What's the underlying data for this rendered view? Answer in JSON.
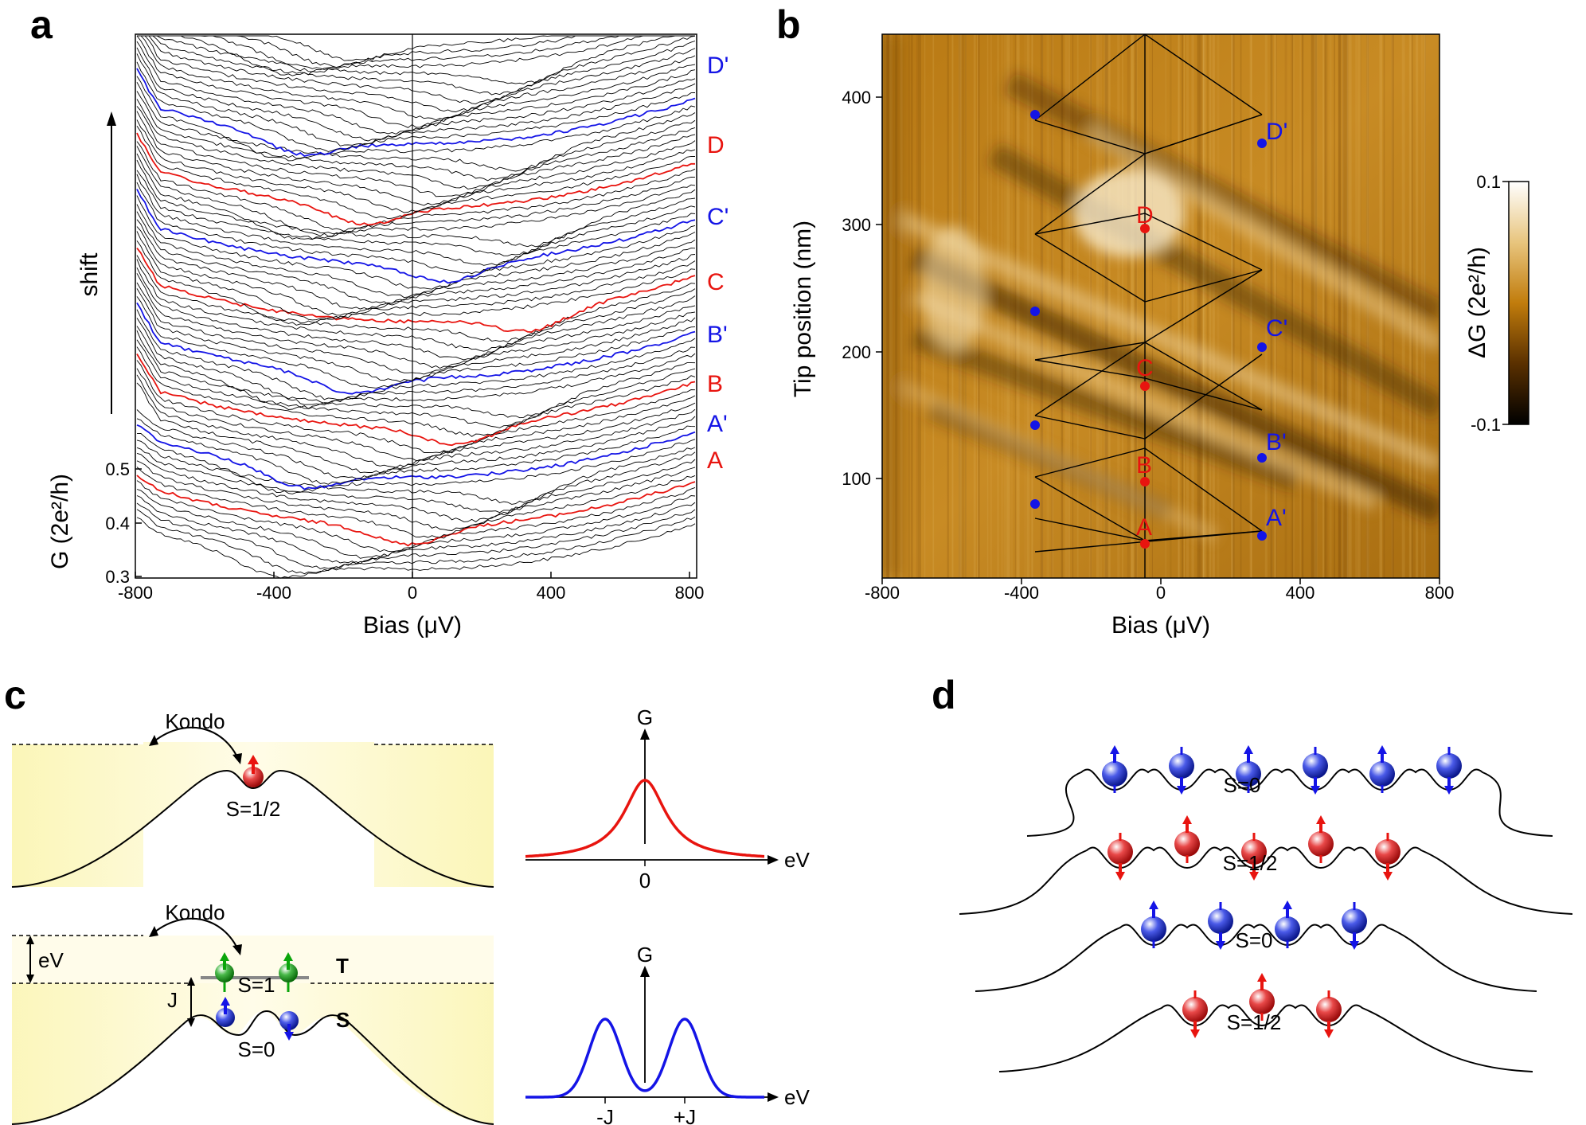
{
  "panels": {
    "a": "a",
    "b": "b",
    "c": "c",
    "d": "d"
  },
  "colors": {
    "red": "#e8140f",
    "blue": "#1414e6",
    "green": "#0aa50a",
    "black": "#000000"
  },
  "panel_a": {
    "shift_label": "shift",
    "xlabel": "Bias (μV)",
    "ylabel": "G (2e²/h)",
    "xticks": [
      "-800",
      "-400",
      "0",
      "400",
      "800"
    ],
    "yticks": [
      "0.3",
      "0.4",
      "0.5"
    ],
    "curve_labels": [
      {
        "text": "D'",
        "color": "blue"
      },
      {
        "text": "D",
        "color": "red"
      },
      {
        "text": "C'",
        "color": "blue"
      },
      {
        "text": "C",
        "color": "red"
      },
      {
        "text": "B'",
        "color": "blue"
      },
      {
        "text": "B",
        "color": "red"
      },
      {
        "text": "A'",
        "color": "blue"
      },
      {
        "text": "A",
        "color": "red"
      }
    ]
  },
  "panel_b": {
    "xlabel": "Bias (μV)",
    "ylabel": "Tip position (nm)",
    "xticks": [
      "-800",
      "-400",
      "0",
      "400",
      "800"
    ],
    "yticks": [
      "100",
      "200",
      "300",
      "400"
    ],
    "colorbar_label": "ΔG (2e²/h)",
    "colorbar_max": "0.1",
    "colorbar_min": "-0.1",
    "point_labels": [
      {
        "text": "D'",
        "color": "blue"
      },
      {
        "text": "D",
        "color": "red"
      },
      {
        "text": "C'",
        "color": "blue"
      },
      {
        "text": "C",
        "color": "red"
      },
      {
        "text": "B'",
        "color": "blue"
      },
      {
        "text": "B",
        "color": "red"
      },
      {
        "text": "A'",
        "color": "blue"
      },
      {
        "text": "A",
        "color": "red"
      }
    ]
  },
  "panel_c": {
    "kondo_top": "Kondo",
    "spin_top": "S=1/2",
    "kondo_bottom": "Kondo",
    "ev_label": "eV",
    "j_label": "J",
    "s1_label": "S=1",
    "t_label": "T",
    "s0_label": "S=0",
    "s_label": "S",
    "g_top": "G",
    "ev_axis_top": "eV",
    "zero_tick": "0",
    "g_bottom": "G",
    "ev_axis_bottom": "eV",
    "minus_j": "-J",
    "plus_j": "+J"
  },
  "panel_d": {
    "row_labels": [
      "S=0",
      "S=1/2",
      "S=0",
      "S=1/2"
    ]
  }
}
